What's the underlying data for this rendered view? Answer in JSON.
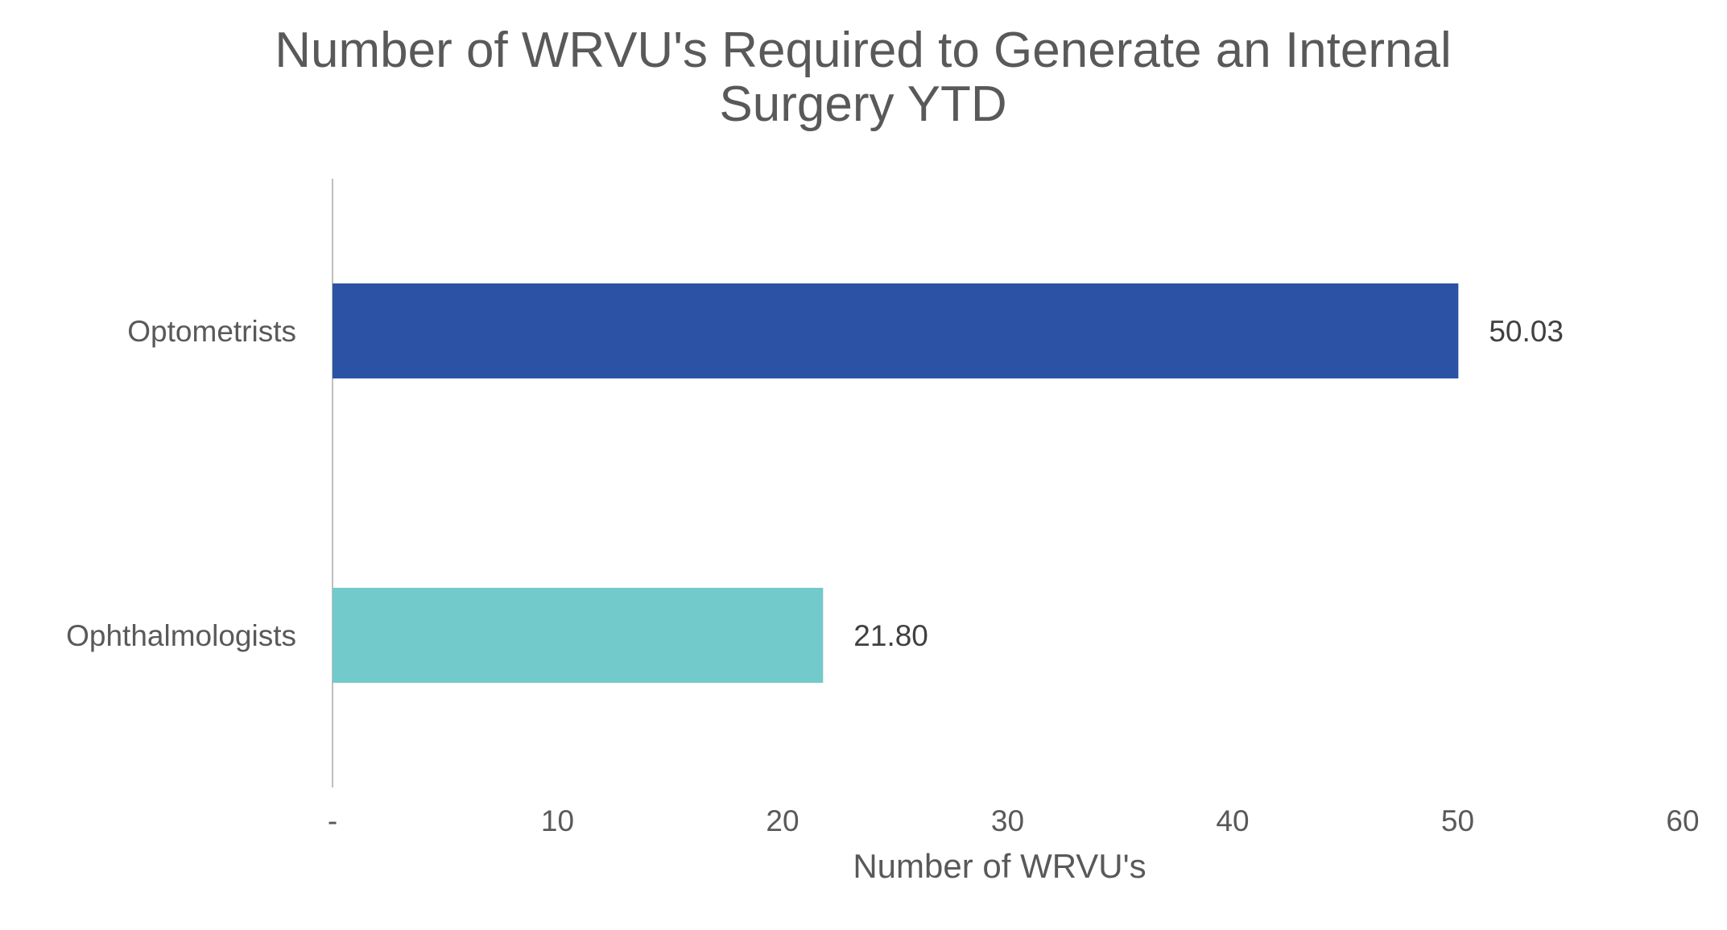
{
  "chart_data": {
    "type": "bar",
    "orientation": "horizontal",
    "title_lines": [
      "Number of WRVU's Required to Generate an Internal",
      "Surgery YTD"
    ],
    "categories": [
      "Optometrists",
      "Ophthalmologists"
    ],
    "values": [
      50.03,
      21.8
    ],
    "data_labels": [
      "50.03",
      "21.80"
    ],
    "colors": [
      "#2B52A4",
      "#72CACA"
    ],
    "xlabel": "Number of WRVU's",
    "ylabel": "",
    "xlim": [
      0,
      60
    ],
    "x_ticks": [
      0,
      10,
      20,
      30,
      40,
      50,
      60
    ],
    "x_tick_labels": [
      "-",
      "10",
      "20",
      "30",
      "40",
      "50",
      "60"
    ],
    "grid": false,
    "legend": "none"
  }
}
